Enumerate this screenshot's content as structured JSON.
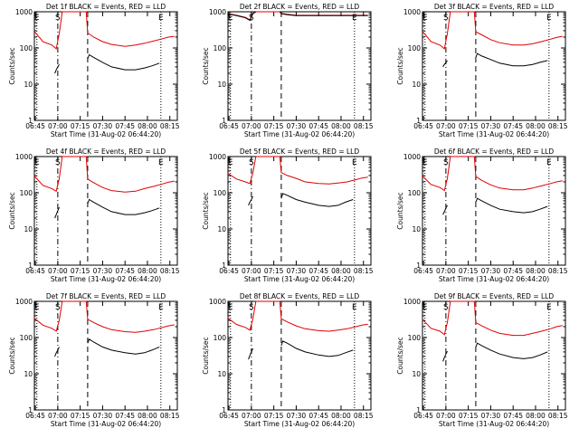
{
  "colors": {
    "events": "#000000",
    "lld": "#e00000"
  },
  "panels": [
    {
      "title": "Det 1f BLACK = Events, RED = LLD",
      "xlabel": "Start Time (31-Aug-02 06:44:20)",
      "ylabel": "Counts/sec"
    },
    {
      "title": "Det 2f BLACK = Events, RED = LLD",
      "xlabel": "Start Time (31-Aug-02 06:44:20)",
      "ylabel": "Counts/sec"
    },
    {
      "title": "Det 3f BLACK = Events, RED = LLD",
      "xlabel": "Start Time (31-Aug-02 06:44:20)",
      "ylabel": "Counts/sec"
    },
    {
      "title": "Det 4f BLACK = Events, RED = LLD",
      "xlabel": "Start Time (31-Aug-02 06:44:20)",
      "ylabel": "Counts/sec"
    },
    {
      "title": "Det 5f BLACK = Events, RED = LLD",
      "xlabel": "Start Time (31-Aug-02 06:44:20)",
      "ylabel": "Counts/sec"
    },
    {
      "title": "Det 6f BLACK = Events, RED = LLD",
      "xlabel": "Start Time (31-Aug-02 06:44:20)",
      "ylabel": "Counts/sec"
    },
    {
      "title": "Det 7f BLACK = Events, RED = LLD",
      "xlabel": "Start Time (31-Aug-02 06:44:20)",
      "ylabel": "Counts/sec"
    },
    {
      "title": "Det 8f BLACK = Events, RED = LLD",
      "xlabel": "Start Time (31-Aug-02 06:44:20)",
      "ylabel": "Counts/sec"
    },
    {
      "title": "Det 9f BLACK = Events, RED = LLD",
      "xlabel": "Start Time (31-Aug-02 06:44:20)",
      "ylabel": "Counts/sec"
    }
  ],
  "chart_data": [
    {
      "type": "line",
      "title": "Det 1f BLACK = Events, RED = LLD",
      "xlabel": "Start Time (31-Aug-02 06:44:20)",
      "ylabel": "Counts/sec",
      "yscale": "log",
      "ylim": [
        1,
        1000
      ],
      "xlim": [
        "06:44:20",
        "08:20:00"
      ],
      "xticks": [
        "06:45",
        "07:00",
        "07:15",
        "07:30",
        "07:45",
        "08:00",
        "08:15"
      ],
      "yticks": [
        "1",
        "10",
        "100",
        "1000"
      ],
      "markers": [
        "E",
        "S",
        "E"
      ],
      "series": [
        {
          "name": "LLD",
          "x": [
            "06:44",
            "06:50",
            "06:56",
            "06:59",
            "07:01",
            "07:03",
            "07:19",
            "07:20",
            "07:24",
            "07:30",
            "07:36",
            "07:45",
            "07:52",
            "07:58",
            "08:04",
            "08:10",
            "08:14",
            "08:18"
          ],
          "values": [
            300,
            150,
            120,
            95,
            250,
            1000,
            1000,
            260,
            200,
            150,
            125,
            110,
            120,
            135,
            155,
            180,
            200,
            210
          ]
        },
        {
          "name": "Events",
          "x": [
            "06:58",
            "06:59",
            "07:00",
            "07:01",
            "07:20",
            "07:21",
            "07:24",
            "07:30",
            "07:36",
            "07:45",
            "07:52",
            "07:58",
            "08:03",
            "08:08"
          ],
          "values": [
            20,
            25,
            30,
            35,
            50,
            65,
            55,
            40,
            30,
            25,
            25,
            28,
            32,
            38
          ]
        }
      ]
    },
    {
      "type": "line",
      "title": "Det 2f BLACK = Events, RED = LLD",
      "xlabel": "Start Time (31-Aug-02 06:44:20)",
      "ylabel": "Counts/sec",
      "yscale": "log",
      "ylim": [
        1,
        1000
      ],
      "xlim": [
        "06:44:20",
        "08:20:00"
      ],
      "xticks": [
        "06:45",
        "07:00",
        "07:15",
        "07:30",
        "07:45",
        "08:00",
        "08:15"
      ],
      "yticks": [
        "1",
        "10",
        "100",
        "1000"
      ],
      "markers": [
        "E",
        "S",
        "E"
      ],
      "series": [
        {
          "name": "LLD",
          "x": [
            "06:44",
            "06:50",
            "06:56",
            "06:59",
            "07:01",
            "07:03",
            "07:19",
            "07:20",
            "07:24",
            "07:30",
            "07:36",
            "07:45",
            "07:52",
            "07:58",
            "08:04",
            "08:10",
            "08:14",
            "08:18"
          ],
          "values": [
            900,
            800,
            700,
            600,
            900,
            1000,
            1000,
            900,
            850,
            800,
            800,
            800,
            800,
            800,
            800,
            800,
            800,
            800
          ]
        },
        {
          "name": "Events",
          "x": [
            "06:44",
            "06:50",
            "06:56",
            "06:59",
            "07:01",
            "07:03",
            "07:19",
            "07:20",
            "07:24",
            "07:30",
            "07:36",
            "07:45",
            "07:52",
            "07:58",
            "08:04",
            "08:10",
            "08:14",
            "08:18"
          ],
          "values": [
            880,
            780,
            680,
            580,
            880,
            1000,
            1000,
            880,
            830,
            780,
            780,
            780,
            780,
            780,
            780,
            780,
            780,
            780
          ]
        }
      ]
    },
    {
      "type": "line",
      "title": "Det 3f BLACK = Events, RED = LLD",
      "xlabel": "Start Time (31-Aug-02 06:44:20)",
      "ylabel": "Counts/sec",
      "yscale": "log",
      "ylim": [
        1,
        1000
      ],
      "xlim": [
        "06:44:20",
        "08:20:00"
      ],
      "xticks": [
        "06:45",
        "07:00",
        "07:15",
        "07:30",
        "07:45",
        "08:00",
        "08:15"
      ],
      "yticks": [
        "1",
        "10",
        "100",
        "1000"
      ],
      "markers": [
        "E",
        "S",
        "E"
      ],
      "series": [
        {
          "name": "LLD",
          "x": [
            "06:44",
            "06:50",
            "06:56",
            "06:59",
            "07:01",
            "07:03",
            "07:19",
            "07:20",
            "07:24",
            "07:30",
            "07:36",
            "07:45",
            "07:52",
            "07:58",
            "08:04",
            "08:10",
            "08:14",
            "08:18"
          ],
          "values": [
            300,
            150,
            120,
            95,
            250,
            1000,
            1000,
            280,
            230,
            170,
            140,
            120,
            120,
            130,
            150,
            175,
            195,
            210
          ]
        },
        {
          "name": "Events",
          "x": [
            "06:58",
            "06:59",
            "07:00",
            "07:01",
            "07:20",
            "07:21",
            "07:24",
            "07:30",
            "07:36",
            "07:45",
            "07:52",
            "07:58",
            "08:03",
            "08:08"
          ],
          "values": [
            30,
            35,
            40,
            45,
            55,
            70,
            60,
            48,
            38,
            32,
            32,
            35,
            40,
            45
          ]
        }
      ]
    },
    {
      "type": "line",
      "title": "Det 4f BLACK = Events, RED = LLD",
      "xlabel": "Start Time (31-Aug-02 06:44:20)",
      "ylabel": "Counts/sec",
      "yscale": "log",
      "ylim": [
        1,
        1000
      ],
      "xlim": [
        "06:44:20",
        "08:20:00"
      ],
      "xticks": [
        "06:45",
        "07:00",
        "07:15",
        "07:30",
        "07:45",
        "08:00",
        "08:15"
      ],
      "yticks": [
        "1",
        "10",
        "100",
        "1000"
      ],
      "markers": [
        "E",
        "S",
        "E"
      ],
      "series": [
        {
          "name": "LLD",
          "x": [
            "06:44",
            "06:50",
            "06:56",
            "06:59",
            "07:01",
            "07:03",
            "07:19",
            "07:20",
            "07:24",
            "07:30",
            "07:36",
            "07:45",
            "07:52",
            "07:58",
            "08:04",
            "08:10",
            "08:14",
            "08:18"
          ],
          "values": [
            300,
            160,
            130,
            110,
            250,
            1000,
            1000,
            240,
            190,
            140,
            115,
            105,
            110,
            130,
            150,
            175,
            195,
            210
          ]
        },
        {
          "name": "Events",
          "x": [
            "06:58",
            "06:59",
            "07:00",
            "07:01",
            "07:20",
            "07:21",
            "07:24",
            "07:30",
            "07:36",
            "07:45",
            "07:52",
            "07:58",
            "08:03",
            "08:08"
          ],
          "values": [
            20,
            25,
            32,
            40,
            50,
            65,
            55,
            40,
            30,
            25,
            25,
            28,
            32,
            38
          ]
        }
      ]
    },
    {
      "type": "line",
      "title": "Det 5f BLACK = Events, RED = LLD",
      "xlabel": "Start Time (31-Aug-02 06:44:20)",
      "ylabel": "Counts/sec",
      "yscale": "log",
      "ylim": [
        1,
        1000
      ],
      "xlim": [
        "06:44:20",
        "08:20:00"
      ],
      "xticks": [
        "06:45",
        "07:00",
        "07:15",
        "07:30",
        "07:45",
        "08:00",
        "08:15"
      ],
      "yticks": [
        "1",
        "10",
        "100",
        "1000"
      ],
      "markers": [
        "E",
        "S",
        "E"
      ],
      "series": [
        {
          "name": "LLD",
          "x": [
            "06:44",
            "06:50",
            "06:56",
            "06:59",
            "07:01",
            "07:03",
            "07:19",
            "07:20",
            "07:24",
            "07:30",
            "07:36",
            "07:45",
            "07:52",
            "07:58",
            "08:04",
            "08:10",
            "08:14",
            "08:18"
          ],
          "values": [
            350,
            240,
            200,
            180,
            350,
            1000,
            1000,
            360,
            300,
            250,
            200,
            180,
            175,
            185,
            200,
            230,
            255,
            270
          ]
        },
        {
          "name": "Events",
          "x": [
            "06:58",
            "06:59",
            "07:00",
            "07:01",
            "07:20",
            "07:21",
            "07:24",
            "07:30",
            "07:36",
            "07:45",
            "07:52",
            "07:58",
            "08:03",
            "08:08"
          ],
          "values": [
            45,
            55,
            65,
            80,
            70,
            95,
            85,
            65,
            55,
            45,
            42,
            45,
            55,
            65
          ]
        }
      ]
    },
    {
      "type": "line",
      "title": "Det 6f BLACK = Events, RED = LLD",
      "xlabel": "Start Time (31-Aug-02 06:44:20)",
      "ylabel": "Counts/sec",
      "yscale": "log",
      "ylim": [
        1,
        1000
      ],
      "xlim": [
        "06:44:20",
        "08:20:00"
      ],
      "xticks": [
        "06:45",
        "07:00",
        "07:15",
        "07:30",
        "07:45",
        "08:00",
        "08:15"
      ],
      "yticks": [
        "1",
        "10",
        "100",
        "1000"
      ],
      "markers": [
        "E",
        "S",
        "E"
      ],
      "series": [
        {
          "name": "LLD",
          "x": [
            "06:44",
            "06:50",
            "06:56",
            "06:59",
            "07:01",
            "07:03",
            "07:19",
            "07:20",
            "07:24",
            "07:30",
            "07:36",
            "07:45",
            "07:52",
            "07:58",
            "08:04",
            "08:10",
            "08:14",
            "08:18"
          ],
          "values": [
            300,
            170,
            140,
            115,
            250,
            1000,
            1000,
            280,
            220,
            165,
            135,
            120,
            120,
            135,
            155,
            180,
            200,
            215
          ]
        },
        {
          "name": "Events",
          "x": [
            "06:58",
            "06:59",
            "07:00",
            "07:01",
            "07:20",
            "07:21",
            "07:24",
            "07:30",
            "07:36",
            "07:45",
            "07:52",
            "07:58",
            "08:03",
            "08:08"
          ],
          "values": [
            25,
            30,
            38,
            45,
            55,
            70,
            60,
            45,
            35,
            30,
            28,
            30,
            35,
            42
          ]
        }
      ]
    },
    {
      "type": "line",
      "title": "Det 7f BLACK = Events, RED = LLD",
      "xlabel": "Start Time (31-Aug-02 06:44:20)",
      "ylabel": "Counts/sec",
      "yscale": "log",
      "ylim": [
        1,
        1000
      ],
      "xlim": [
        "06:44:20",
        "08:20:00"
      ],
      "xticks": [
        "06:45",
        "07:00",
        "07:15",
        "07:30",
        "07:45",
        "08:00",
        "08:15"
      ],
      "yticks": [
        "1",
        "10",
        "100",
        "1000"
      ],
      "markers": [
        "E",
        "S",
        "E"
      ],
      "series": [
        {
          "name": "LLD",
          "x": [
            "06:44",
            "06:50",
            "06:56",
            "06:59",
            "07:01",
            "07:03",
            "07:19",
            "07:20",
            "07:24",
            "07:30",
            "07:36",
            "07:45",
            "07:52",
            "07:58",
            "08:04",
            "08:10",
            "08:14",
            "08:18"
          ],
          "values": [
            350,
            220,
            180,
            150,
            300,
            1000,
            1000,
            320,
            260,
            200,
            165,
            145,
            140,
            150,
            165,
            190,
            210,
            225
          ]
        },
        {
          "name": "Events",
          "x": [
            "06:58",
            "06:59",
            "07:00",
            "07:01",
            "07:20",
            "07:21",
            "07:24",
            "07:30",
            "07:36",
            "07:45",
            "07:52",
            "07:58",
            "08:03",
            "08:08"
          ],
          "values": [
            30,
            38,
            45,
            55,
            70,
            90,
            75,
            55,
            45,
            38,
            35,
            38,
            45,
            55
          ]
        }
      ]
    },
    {
      "type": "line",
      "title": "Det 8f BLACK = Events, RED = LLD",
      "xlabel": "Start Time (31-Aug-02 06:44:20)",
      "ylabel": "Counts/sec",
      "yscale": "log",
      "ylim": [
        1,
        1000
      ],
      "xlim": [
        "06:44:20",
        "08:20:00"
      ],
      "xticks": [
        "06:45",
        "07:00",
        "07:15",
        "07:30",
        "07:45",
        "08:00",
        "08:15"
      ],
      "yticks": [
        "1",
        "10",
        "100",
        "1000"
      ],
      "markers": [
        "E",
        "S",
        "E"
      ],
      "series": [
        {
          "name": "LLD",
          "x": [
            "06:44",
            "06:50",
            "06:56",
            "06:59",
            "07:01",
            "07:03",
            "07:19",
            "07:20",
            "07:24",
            "07:30",
            "07:36",
            "07:45",
            "07:52",
            "07:58",
            "08:04",
            "08:10",
            "08:14",
            "08:18"
          ],
          "values": [
            350,
            230,
            190,
            160,
            320,
            1000,
            1000,
            330,
            270,
            210,
            175,
            155,
            150,
            160,
            175,
            200,
            220,
            235
          ]
        },
        {
          "name": "Events",
          "x": [
            "06:58",
            "06:59",
            "07:00",
            "07:01",
            "07:20",
            "07:21",
            "07:24",
            "07:30",
            "07:36",
            "07:45",
            "07:52",
            "07:58",
            "08:03",
            "08:08"
          ],
          "values": [
            25,
            32,
            40,
            50,
            60,
            80,
            70,
            50,
            40,
            33,
            30,
            32,
            38,
            45
          ]
        }
      ]
    },
    {
      "type": "line",
      "title": "Det 9f BLACK = Events, RED = LLD",
      "xlabel": "Start Time (31-Aug-02 06:44:20)",
      "ylabel": "Counts/sec",
      "yscale": "log",
      "ylim": [
        1,
        1000
      ],
      "xlim": [
        "06:44:20",
        "08:20:00"
      ],
      "xticks": [
        "06:45",
        "07:00",
        "07:15",
        "07:30",
        "07:45",
        "08:00",
        "08:15"
      ],
      "yticks": [
        "1",
        "10",
        "100",
        "1000"
      ],
      "markers": [
        "E",
        "S",
        "E"
      ],
      "series": [
        {
          "name": "LLD",
          "x": [
            "06:44",
            "06:50",
            "06:56",
            "06:59",
            "07:01",
            "07:03",
            "07:19",
            "07:20",
            "07:24",
            "07:30",
            "07:36",
            "07:45",
            "07:52",
            "07:58",
            "08:04",
            "08:10",
            "08:14",
            "08:18"
          ],
          "values": [
            330,
            180,
            150,
            120,
            260,
            1000,
            1000,
            260,
            210,
            160,
            130,
            115,
            115,
            130,
            150,
            175,
            200,
            215
          ]
        },
        {
          "name": "Events",
          "x": [
            "06:58",
            "06:59",
            "07:00",
            "07:01",
            "07:20",
            "07:21",
            "07:24",
            "07:30",
            "07:36",
            "07:45",
            "07:52",
            "07:58",
            "08:03",
            "08:08"
          ],
          "values": [
            22,
            28,
            35,
            42,
            55,
            70,
            60,
            45,
            35,
            28,
            26,
            28,
            33,
            40
          ]
        }
      ]
    }
  ]
}
